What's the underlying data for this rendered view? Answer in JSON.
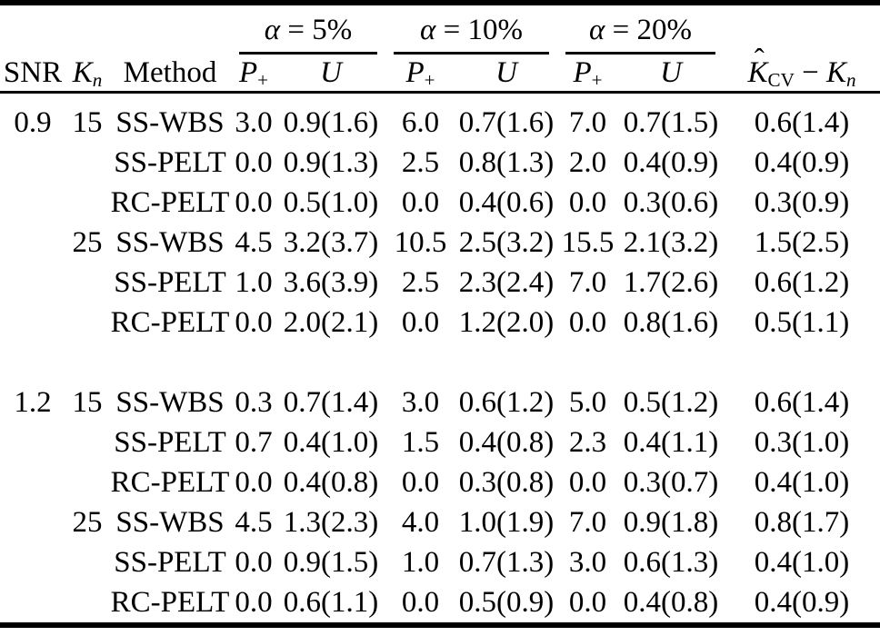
{
  "table": {
    "alpha_groups": [
      {
        "sym": "α",
        "rest": " = 5%"
      },
      {
        "sym": "α",
        "rest": " = 10%"
      },
      {
        "sym": "α",
        "rest": " = 20%"
      }
    ],
    "col_headers": {
      "snr": "SNR",
      "kn": {
        "base": "K",
        "sub": "n"
      },
      "method": "Method",
      "p_plus": {
        "base": "P",
        "sub": "+"
      },
      "u": "U",
      "k_cv": {
        "hat": "ˆ",
        "base": "K",
        "sub": "CV",
        "minus": " − ",
        "base2": "K",
        "sub2": "n"
      }
    },
    "rows": [
      {
        "snr": "0.9",
        "kn": "15",
        "method": "SS-WBS",
        "values": [
          "3.0",
          "0.9(1.6)",
          "6.0",
          "0.7(1.6)",
          "7.0",
          "0.7(1.5)",
          "0.6(1.4)"
        ]
      },
      {
        "snr": "",
        "kn": "",
        "method": "SS-PELT",
        "values": [
          "0.0",
          "0.9(1.3)",
          "2.5",
          "0.8(1.3)",
          "2.0",
          "0.4(0.9)",
          "0.4(0.9)"
        ]
      },
      {
        "snr": "",
        "kn": "",
        "method": "RC-PELT",
        "values": [
          "0.0",
          "0.5(1.0)",
          "0.0",
          "0.4(0.6)",
          "0.0",
          "0.3(0.6)",
          "0.3(0.9)"
        ]
      },
      {
        "snr": "",
        "kn": "25",
        "method": "SS-WBS",
        "values": [
          "4.5",
          "3.2(3.7)",
          "10.5",
          "2.5(3.2)",
          "15.5",
          "2.1(3.2)",
          "1.5(2.5)"
        ]
      },
      {
        "snr": "",
        "kn": "",
        "method": "SS-PELT",
        "values": [
          "1.0",
          "3.6(3.9)",
          "2.5",
          "2.3(2.4)",
          "7.0",
          "1.7(2.6)",
          "0.6(1.2)"
        ]
      },
      {
        "snr": "",
        "kn": "",
        "method": "RC-PELT",
        "values": [
          "0.0",
          "2.0(2.1)",
          "0.0",
          "1.2(2.0)",
          "0.0",
          "0.8(1.6)",
          "0.5(1.1)"
        ]
      },
      {
        "spacer": true
      },
      {
        "snr": "1.2",
        "kn": "15",
        "method": "SS-WBS",
        "values": [
          "0.3",
          "0.7(1.4)",
          "3.0",
          "0.6(1.2)",
          "5.0",
          "0.5(1.2)",
          "0.6(1.4)"
        ]
      },
      {
        "snr": "",
        "kn": "",
        "method": "SS-PELT",
        "values": [
          "0.7",
          "0.4(1.0)",
          "1.5",
          "0.4(0.8)",
          "2.3",
          "0.4(1.1)",
          "0.3(1.0)"
        ]
      },
      {
        "snr": "",
        "kn": "",
        "method": "RC-PELT",
        "values": [
          "0.0",
          "0.4(0.8)",
          "0.0",
          "0.3(0.8)",
          "0.0",
          "0.3(0.7)",
          "0.4(1.0)"
        ]
      },
      {
        "snr": "",
        "kn": "25",
        "method": "SS-WBS",
        "values": [
          "4.5",
          "1.3(2.3)",
          "4.0",
          "1.0(1.9)",
          "7.0",
          "0.9(1.8)",
          "0.8(1.7)"
        ]
      },
      {
        "snr": "",
        "kn": "",
        "method": "SS-PELT",
        "values": [
          "0.0",
          "0.9(1.5)",
          "1.0",
          "0.7(1.3)",
          "3.0",
          "0.6(1.3)",
          "0.4(1.0)"
        ]
      },
      {
        "snr": "",
        "kn": "",
        "method": "RC-PELT",
        "values": [
          "0.0",
          "0.6(1.1)",
          "0.0",
          "0.5(0.9)",
          "0.0",
          "0.4(0.8)",
          "0.4(0.9)"
        ]
      }
    ]
  }
}
